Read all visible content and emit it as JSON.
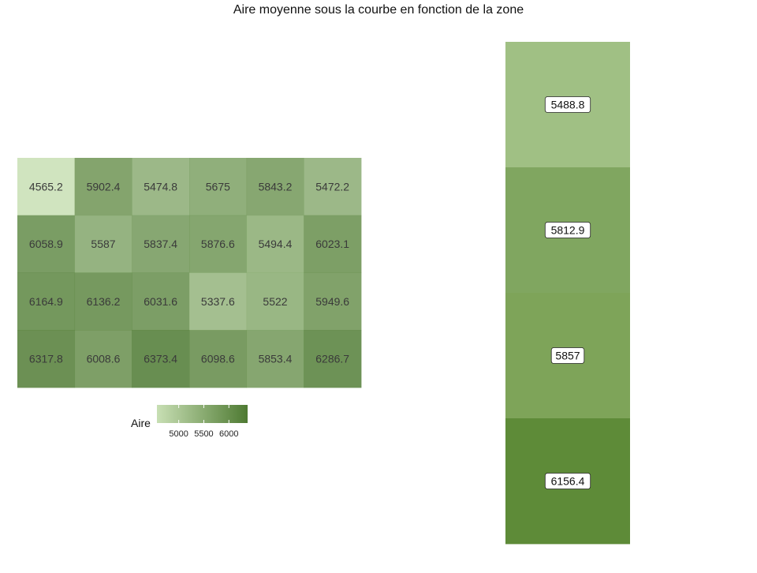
{
  "chart_data": [
    {
      "type": "heatmap",
      "title": "Aire moyenne sous la courbe en fonction de la zone",
      "rows": 4,
      "cols": 6,
      "values": [
        [
          4565.2,
          5902.4,
          5474.8,
          5675,
          5843.2,
          5472.2
        ],
        [
          6058.9,
          5587,
          5837.4,
          5876.6,
          5494.4,
          6023.1
        ],
        [
          6164.9,
          6136.2,
          6031.6,
          5337.6,
          5522,
          5949.6
        ],
        [
          6317.8,
          6008.6,
          6373.4,
          6098.6,
          5853.4,
          6286.7
        ]
      ],
      "labels": [
        [
          "4565.2",
          "5902.4",
          "5474.8",
          "5675",
          "5843.2",
          "5472.2"
        ],
        [
          "6058.9",
          "5587",
          "5837.4",
          "5876.6",
          "5494.4",
          "6023.1"
        ],
        [
          "6164.9",
          "6136.2",
          "6031.6",
          "5337.6",
          "5522",
          "5949.6"
        ],
        [
          "6317.8",
          "6008.6",
          "6373.4",
          "6098.6",
          "5853.4",
          "6286.7"
        ]
      ],
      "legend": {
        "title": "Aire",
        "placement": "bottom",
        "ticks": [
          5000,
          5500,
          6000
        ],
        "tick_labels": [
          "5000",
          "5500",
          "6000"
        ],
        "range": [
          4565.2,
          6373.4
        ],
        "low_color": "#c8dfb4",
        "high_color": "#4e7a32"
      }
    },
    {
      "type": "heatmap",
      "rows": 4,
      "cols": 1,
      "values": [
        5488.8,
        5812.9,
        5857,
        6156.4
      ],
      "labels": [
        "5488.8",
        "5812.9",
        "5857",
        "6156.4"
      ],
      "colors": [
        "#a0c084",
        "#80a660",
        "#7ea459",
        "#5e8b38"
      ]
    }
  ]
}
